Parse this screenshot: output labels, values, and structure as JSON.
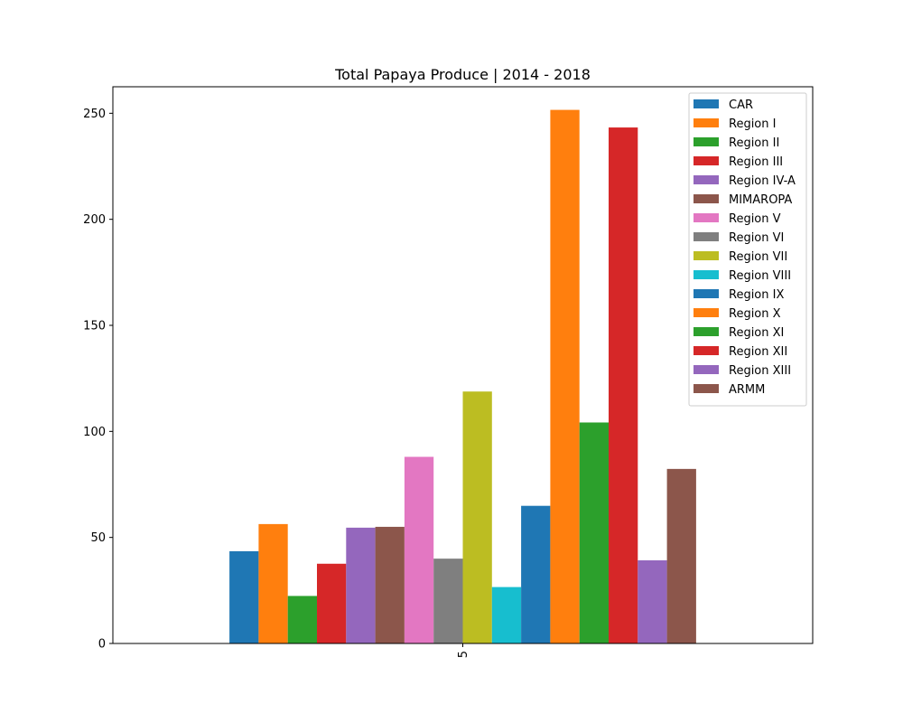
{
  "chart_data": {
    "type": "bar",
    "title": "Total Papaya Produce | 2014 - 2018",
    "xlabel": "",
    "ylabel": "",
    "categories": [
      "5"
    ],
    "ylim": [
      0,
      262.5
    ],
    "yticks": [
      0,
      50,
      100,
      150,
      200,
      250
    ],
    "grid": false,
    "legend_position": "top-right",
    "series": [
      {
        "name": "CAR",
        "color": "#1f77b4",
        "values": [
          43.5
        ]
      },
      {
        "name": "Region I",
        "color": "#ff7f0e",
        "values": [
          56.3
        ]
      },
      {
        "name": "Region II",
        "color": "#2ca02c",
        "values": [
          22.4
        ]
      },
      {
        "name": "Region III",
        "color": "#d62728",
        "values": [
          37.6
        ]
      },
      {
        "name": "Region IV-A",
        "color": "#9467bd",
        "values": [
          54.6
        ]
      },
      {
        "name": "MIMAROPA",
        "color": "#8c564b",
        "values": [
          55.0
        ]
      },
      {
        "name": "Region V",
        "color": "#e377c2",
        "values": [
          88.0
        ]
      },
      {
        "name": "Region VI",
        "color": "#7f7f7f",
        "values": [
          40.0
        ]
      },
      {
        "name": "Region VII",
        "color": "#bcbd22",
        "values": [
          118.8
        ]
      },
      {
        "name": "Region VIII",
        "color": "#17becf",
        "values": [
          26.6
        ]
      },
      {
        "name": "Region IX",
        "color": "#1f77b4",
        "values": [
          64.9
        ]
      },
      {
        "name": "Region X",
        "color": "#ff7f0e",
        "values": [
          251.6
        ]
      },
      {
        "name": "Region XI",
        "color": "#2ca02c",
        "values": [
          104.2
        ]
      },
      {
        "name": "Region XII",
        "color": "#d62728",
        "values": [
          243.3
        ]
      },
      {
        "name": "Region XIII",
        "color": "#9467bd",
        "values": [
          39.2
        ]
      },
      {
        "name": "ARMM",
        "color": "#8c564b",
        "values": [
          82.3
        ]
      }
    ]
  }
}
